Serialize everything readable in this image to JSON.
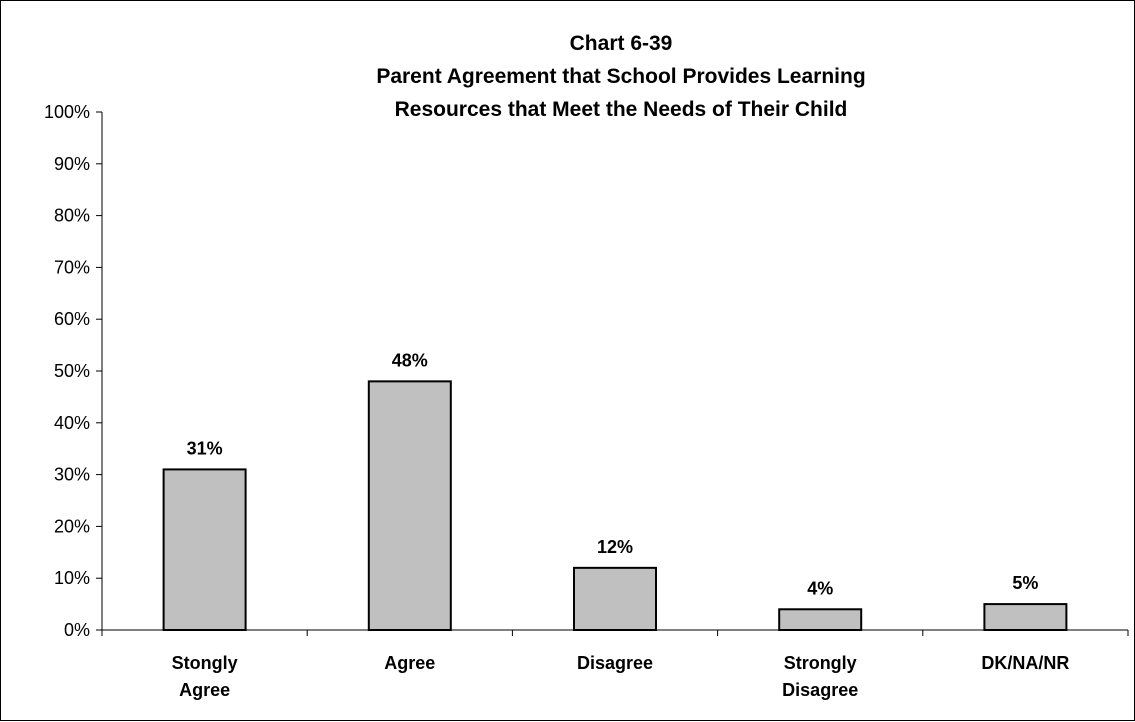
{
  "chart_data": {
    "type": "bar",
    "title_lines": [
      "Chart 6-39",
      "Parent Agreement that School Provides Learning",
      "Resources that Meet the Needs of Their Child"
    ],
    "categories": [
      [
        "Stongly",
        "Agree"
      ],
      [
        "Agree"
      ],
      [
        "Disagree"
      ],
      [
        "Strongly",
        "Disagree"
      ],
      [
        "DK/NA/NR"
      ]
    ],
    "values": [
      31,
      48,
      12,
      4,
      5
    ],
    "data_labels": [
      "31%",
      "48%",
      "12%",
      "4%",
      "5%"
    ],
    "y_ticks": [
      0,
      10,
      20,
      30,
      40,
      50,
      60,
      70,
      80,
      90,
      100
    ],
    "y_tick_labels": [
      "0%",
      "10%",
      "20%",
      "30%",
      "40%",
      "50%",
      "60%",
      "70%",
      "80%",
      "90%",
      "100%"
    ],
    "ylim": [
      0,
      100
    ],
    "xlabel": "",
    "ylabel": "",
    "grid": false,
    "legend": "none",
    "bar_fill": "#c0c0c0",
    "bar_stroke": "#000000"
  }
}
